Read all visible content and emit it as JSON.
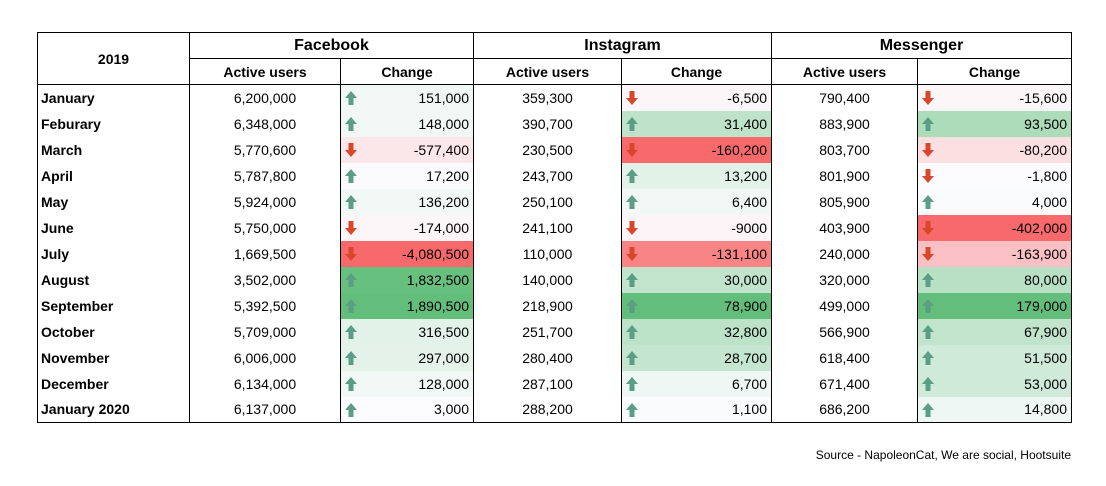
{
  "corner_label": "2019",
  "groups": [
    "Facebook",
    "Instagram",
    "Messenger"
  ],
  "subheaders": [
    "Active users",
    "Change"
  ],
  "rows": [
    {
      "month": "January",
      "cells": [
        [
          "6,200,000",
          "151,000",
          "up"
        ],
        [
          "359,300",
          "-6,500",
          "down"
        ],
        [
          "790,400",
          "-15,600",
          "down"
        ]
      ]
    },
    {
      "month": "Feburary",
      "cells": [
        [
          "6,348,000",
          "148,000",
          "up"
        ],
        [
          "390,700",
          "31,400",
          "up"
        ],
        [
          "883,900",
          "93,500",
          "up"
        ]
      ]
    },
    {
      "month": "March",
      "cells": [
        [
          "5,770,600",
          "-577,400",
          "down"
        ],
        [
          "230,500",
          "-160,200",
          "down"
        ],
        [
          "803,700",
          "-80,200",
          "down"
        ]
      ]
    },
    {
      "month": "April",
      "cells": [
        [
          "5,787,800",
          "17,200",
          "up"
        ],
        [
          "243,700",
          "13,200",
          "up"
        ],
        [
          "801,900",
          "-1,800",
          "down"
        ]
      ]
    },
    {
      "month": "May",
      "cells": [
        [
          "5,924,000",
          "136,200",
          "up"
        ],
        [
          "250,100",
          "6,400",
          "up"
        ],
        [
          "805,900",
          "4,000",
          "up"
        ]
      ]
    },
    {
      "month": "June",
      "cells": [
        [
          "5,750,000",
          "-174,000",
          "down"
        ],
        [
          "241,100",
          "-9000",
          "down"
        ],
        [
          "403,900",
          "-402,000",
          "down"
        ]
      ]
    },
    {
      "month": "July",
      "cells": [
        [
          "1,669,500",
          "-4,080,500",
          "down"
        ],
        [
          "110,000",
          "-131,100",
          "down"
        ],
        [
          "240,000",
          "-163,900",
          "down"
        ]
      ]
    },
    {
      "month": "August",
      "cells": [
        [
          "3,502,000",
          "1,832,500",
          "up"
        ],
        [
          "140,000",
          "30,000",
          "up"
        ],
        [
          "320,000",
          "80,000",
          "up"
        ]
      ]
    },
    {
      "month": "September",
      "cells": [
        [
          "5,392,500",
          "1,890,500",
          "up"
        ],
        [
          "218,900",
          "78,900",
          "up"
        ],
        [
          "499,000",
          "179,000",
          "up"
        ]
      ]
    },
    {
      "month": "October",
      "cells": [
        [
          "5,709,000",
          "316,500",
          "up"
        ],
        [
          "251,700",
          "32,800",
          "up"
        ],
        [
          "566,900",
          "67,900",
          "up"
        ]
      ]
    },
    {
      "month": "November",
      "cells": [
        [
          "6,006,000",
          "297,000",
          "up"
        ],
        [
          "280,400",
          "28,700",
          "up"
        ],
        [
          "618,400",
          "51,500",
          "up"
        ]
      ]
    },
    {
      "month": "December",
      "cells": [
        [
          "6,134,000",
          "128,000",
          "up"
        ],
        [
          "287,100",
          "6,700",
          "up"
        ],
        [
          "671,400",
          "53,000",
          "up"
        ]
      ]
    },
    {
      "month": "January 2020",
      "cells": [
        [
          "6,137,000",
          "3,000",
          "up"
        ],
        [
          "288,200",
          "1,100",
          "up"
        ],
        [
          "686,200",
          "14,800",
          "up"
        ]
      ]
    }
  ],
  "colors": {
    "up_arrow": "#5a9e86",
    "down_arrow": "#d9472b",
    "scale_negative": "#f8696b",
    "scale_mid": "#fcfcff",
    "scale_positive": "#63be7b"
  },
  "icons": {
    "up": "up-arrow-icon",
    "down": "down-arrow-icon"
  },
  "source": "Source - NapoleonCat, We are social, Hootsuite"
}
